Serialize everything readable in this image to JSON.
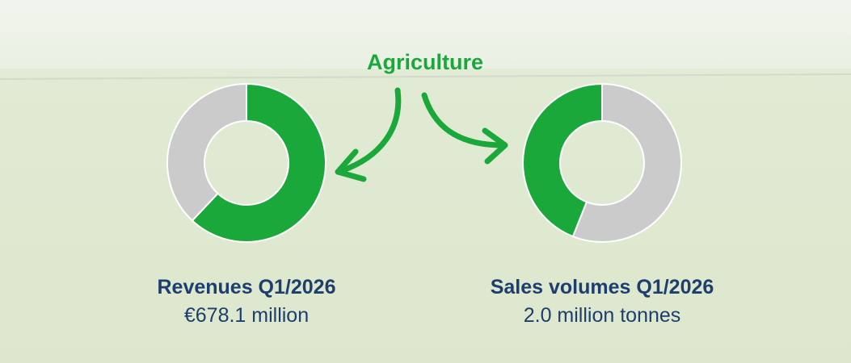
{
  "header": "Agriculture",
  "chart_data": [
    {
      "type": "donut",
      "title": "Revenues Q1/2026",
      "subtitle": "€678.1 million",
      "values": [
        62,
        38
      ],
      "colors": [
        "#1aa83a",
        "#cbcbcb"
      ]
    },
    {
      "type": "donut",
      "title": "Sales volumes Q1/2026",
      "subtitle": "2.0 million tonnes",
      "values": [
        56,
        44
      ],
      "colors": [
        "#cbcbcb",
        "#1aa83a"
      ]
    }
  ]
}
